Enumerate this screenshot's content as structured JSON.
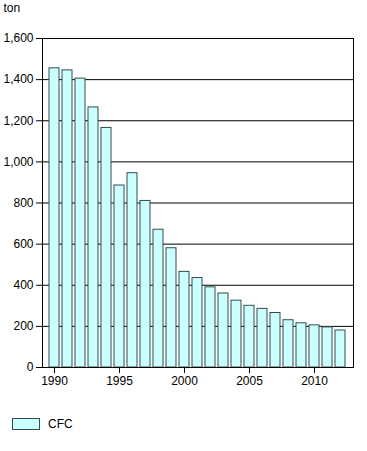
{
  "chart_data": {
    "type": "bar",
    "categories": [
      "1990",
      null,
      null,
      null,
      null,
      "1995",
      null,
      null,
      null,
      null,
      "2000",
      null,
      null,
      null,
      null,
      "2005",
      null,
      null,
      null,
      null,
      "2010",
      null,
      null
    ],
    "series": [
      {
        "name": "CFC",
        "color": "#ccffff",
        "values": [
          1455,
          1445,
          1405,
          1265,
          1165,
          885,
          945,
          810,
          670,
          580,
          465,
          435,
          390,
          360,
          325,
          300,
          285,
          265,
          230,
          215,
          205,
          195,
          180
        ]
      }
    ],
    "ylabel": "ton",
    "ylim": [
      0,
      1600
    ],
    "yticks": [
      0,
      200,
      400,
      600,
      800,
      1000,
      1200,
      1400,
      1600
    ],
    "grid": true,
    "legend": "bottom-left"
  }
}
